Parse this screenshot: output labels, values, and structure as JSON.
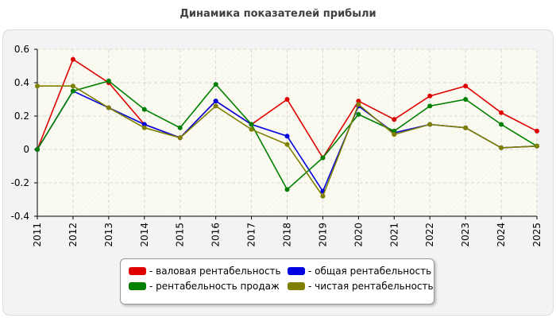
{
  "chart_data": {
    "type": "line",
    "title": "Динамика показателей прибыли",
    "categories": [
      "2011",
      "2012",
      "2013",
      "2014",
      "2015",
      "2016",
      "2017",
      "2018",
      "2019",
      "2020",
      "2021",
      "2022",
      "2023",
      "2024",
      "2025"
    ],
    "ylim": [
      -0.4,
      0.6
    ],
    "yticks": [
      "0.6",
      "0.4",
      "0.2",
      "0",
      "-0.2",
      "-0.4"
    ],
    "grid": true,
    "legend_position": "bottom-center",
    "series": [
      {
        "name": "- валовая рентабельность",
        "color": "#e00000",
        "values": [
          0,
          0.54,
          0.4,
          0.15,
          0.07,
          0.29,
          0.15,
          0.3,
          -0.05,
          0.29,
          0.18,
          0.32,
          0.38,
          0.22,
          0.11
        ]
      },
      {
        "name": "- общая рентабельность",
        "color": "#0000e0",
        "values": [
          0,
          0.35,
          0.25,
          0.15,
          0.07,
          0.29,
          0.15,
          0.08,
          -0.25,
          0.26,
          0.1,
          0.15,
          0.13,
          0.01,
          0.02
        ]
      },
      {
        "name": "- рентабельность продаж",
        "color": "#008000",
        "values": [
          0,
          0.35,
          0.41,
          0.24,
          0.13,
          0.39,
          0.15,
          -0.24,
          -0.05,
          0.21,
          0.11,
          0.26,
          0.3,
          0.15,
          0.02
        ]
      },
      {
        "name": "- чистая рентабельность",
        "color": "#808000",
        "values": [
          0.38,
          0.38,
          0.25,
          0.13,
          0.07,
          0.26,
          0.12,
          0.03,
          -0.28,
          0.27,
          0.09,
          0.15,
          0.13,
          0.01,
          0.02
        ]
      }
    ]
  },
  "legend": {
    "items": [
      {
        "label": "- валовая рентабельность",
        "color": "#e00000"
      },
      {
        "label": "- общая рентабельность",
        "color": "#0000e0"
      },
      {
        "label": "- рентабельность продаж",
        "color": "#008000"
      },
      {
        "label": "- чистая рентабельность",
        "color": "#808000"
      }
    ]
  }
}
